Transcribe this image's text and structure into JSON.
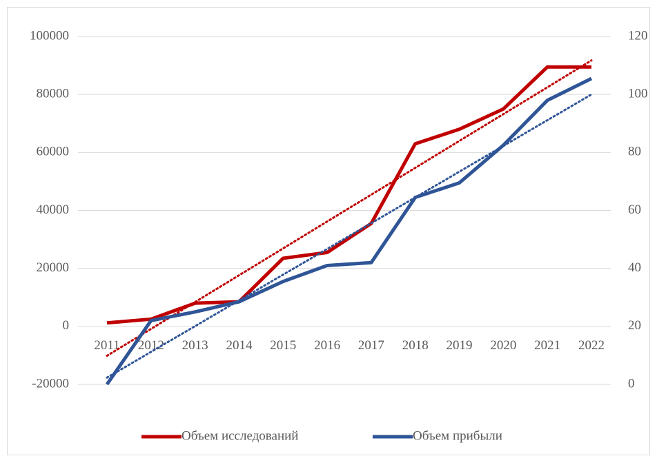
{
  "chart_data": {
    "type": "line",
    "categories": [
      "2011",
      "2012",
      "2013",
      "2014",
      "2015",
      "2016",
      "2017",
      "2018",
      "2019",
      "2020",
      "2021",
      "2022"
    ],
    "series": [
      {
        "name": "Объем исследований",
        "color": "#c00000",
        "values": [
          1200,
          2500,
          8000,
          8500,
          23500,
          25500,
          35500,
          63000,
          68000,
          75000,
          89500,
          89500
        ]
      },
      {
        "name": "Объем прибыли",
        "color": "#2f5597",
        "axis": "y2",
        "values": [
          0,
          22,
          25,
          28.5,
          35.5,
          41,
          42,
          64.5,
          69.5,
          82.5,
          98,
          105.5
        ]
      }
    ],
    "ylim": [
      -20000,
      100000
    ],
    "yticks": [
      -20000,
      0,
      20000,
      40000,
      60000,
      80000,
      100000
    ],
    "y2lim": [
      0,
      120
    ],
    "y2ticks": [
      0,
      20,
      40,
      60,
      80,
      100,
      120
    ],
    "grid": true,
    "trendlines": true,
    "legend": "bottom"
  }
}
